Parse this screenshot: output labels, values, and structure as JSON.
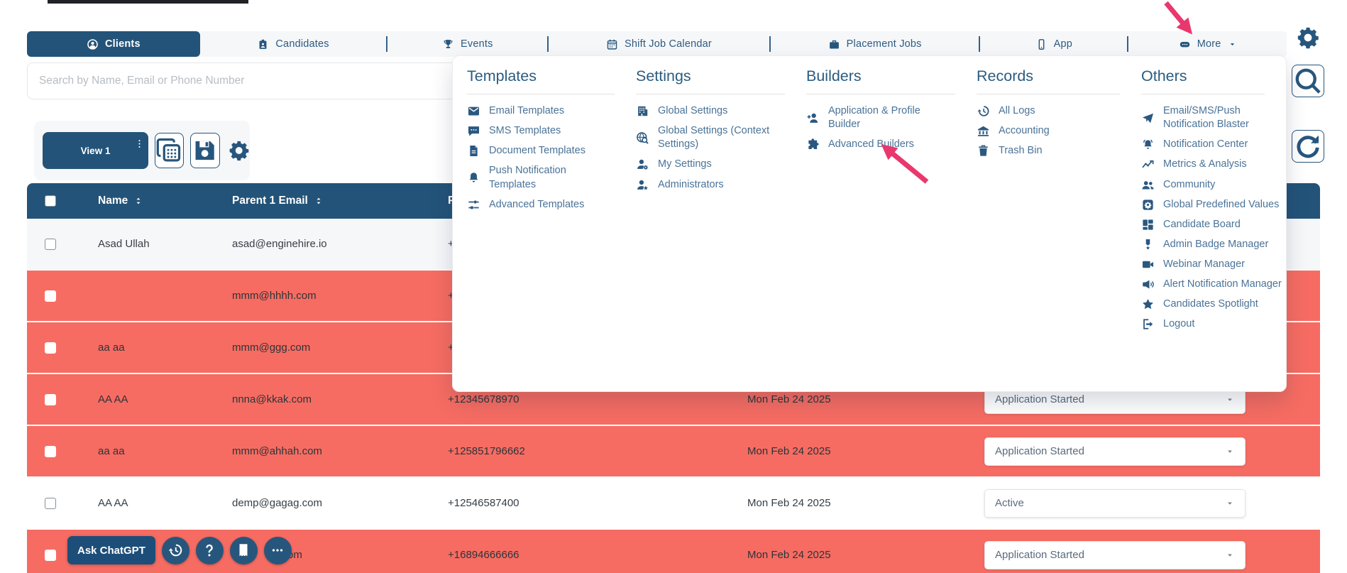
{
  "colors": {
    "brand_blue": "#235378",
    "icon_blue": "#27567d",
    "nav_bg": "#f6f7f9",
    "menu_header": "#2b5c80",
    "menu_link": "#4a7398",
    "row_red": "#f66c62",
    "row_light": "#f6f7f9",
    "arrow_pink": "#e9386e",
    "status_text": "#5a6b7d",
    "top_line": "#212226"
  },
  "nav": {
    "items": [
      {
        "id": "clients",
        "label": "Clients",
        "icon": "person-circle-icon",
        "active": true
      },
      {
        "id": "candidates",
        "label": "Candidates",
        "icon": "id-badge-icon"
      },
      {
        "id": "events",
        "label": "Events",
        "icon": "trophy-icon"
      },
      {
        "id": "shift-job-calendar",
        "label": "Shift Job Calendar",
        "icon": "calendar-icon"
      },
      {
        "id": "placement-jobs",
        "label": "Placement Jobs",
        "icon": "briefcase-icon"
      },
      {
        "id": "app",
        "label": "App",
        "icon": "mobile-icon"
      },
      {
        "id": "more",
        "label": "More",
        "icon": "chat-ellipsis-icon",
        "caret": true
      }
    ]
  },
  "icons": {
    "settings_gear": "gear-icon",
    "search_button": "magnifier-icon",
    "refresh_button": "refresh-icon",
    "view_menu_dots": "dots-vertical-icon",
    "copy_button": "copy-icon",
    "save_button": "save-icon",
    "toolbar_gear": "gear-icon",
    "sort": "sort-icon",
    "status_caret": "caret-down-icon"
  },
  "search": {
    "placeholder": "Search by Name, Email or Phone Number"
  },
  "toolbar": {
    "view_button_label": "View 1"
  },
  "menu": {
    "columns": [
      {
        "title": "Templates",
        "items": [
          {
            "label": "Email Templates",
            "icon": "envelope-icon"
          },
          {
            "label": "SMS Templates",
            "icon": "sms-icon"
          },
          {
            "label": "Document Templates",
            "icon": "document-icon"
          },
          {
            "label": "Push Notification Templates",
            "icon": "bell-icon"
          },
          {
            "label": "Advanced Templates",
            "icon": "tune-icon"
          }
        ]
      },
      {
        "title": "Settings",
        "items": [
          {
            "label": "Global Settings",
            "icon": "building-icon"
          },
          {
            "label": "Global Settings (Context Settings)",
            "icon": "globe-search-icon"
          },
          {
            "label": "My Settings",
            "icon": "user-gear-icon"
          },
          {
            "label": "Administrators",
            "icon": "user-star-icon"
          }
        ]
      },
      {
        "title": "Builders",
        "items": [
          {
            "label": "Application & Profile Builder",
            "icon": "user-plus-icon"
          },
          {
            "label": "Advanced Builders",
            "icon": "puzzle-icon"
          }
        ]
      },
      {
        "title": "Records",
        "items": [
          {
            "label": "All Logs",
            "icon": "history-icon"
          },
          {
            "label": "Accounting",
            "icon": "bank-icon"
          },
          {
            "label": "Trash Bin",
            "icon": "trash-icon"
          }
        ]
      },
      {
        "title": "Others",
        "items": [
          {
            "label": "Email/SMS/Push Notification Blaster",
            "icon": "send-icon"
          },
          {
            "label": "Notification Center",
            "icon": "bell-ring-icon"
          },
          {
            "label": "Metrics & Analysis",
            "icon": "chart-line-icon"
          },
          {
            "label": "Community",
            "icon": "people-icon"
          },
          {
            "label": "Global Predefined Values",
            "icon": "gear-square-icon"
          },
          {
            "label": "Candidate Board",
            "icon": "board-icon"
          },
          {
            "label": "Admin Badge Manager",
            "icon": "badge-icon"
          },
          {
            "label": "Webinar Manager",
            "icon": "video-icon"
          },
          {
            "label": "Alert Notification Manager",
            "icon": "megaphone-icon"
          },
          {
            "label": "Candidates Spotlight",
            "icon": "star-icon"
          },
          {
            "label": "Logout",
            "icon": "logout-icon"
          }
        ]
      }
    ]
  },
  "table": {
    "headers": [
      {
        "key": "name",
        "label": "Name",
        "sortable": true
      },
      {
        "key": "email",
        "label": "Parent 1 Email",
        "sortable": true
      },
      {
        "key": "phone",
        "label": "Phone",
        "sortable": true
      }
    ],
    "rows": [
      {
        "name": "Asad Ullah",
        "email": "asad@enginehire.io",
        "phone": "+",
        "date": "",
        "status": "",
        "highlight": false
      },
      {
        "name": "",
        "email": "mmm@hhhh.com",
        "phone": "+",
        "date": "",
        "status": "",
        "highlight": true
      },
      {
        "name": "aa aa",
        "email": "mmm@ggg.com",
        "phone": "+",
        "date": "",
        "status": "",
        "highlight": true
      },
      {
        "name": "AA AA",
        "email": "nnna@kkak.com",
        "phone": "+12345678970",
        "date": "Mon Feb 24 2025",
        "status": "Application Started",
        "highlight": true
      },
      {
        "name": "aa aa",
        "email": "mmm@ahhah.com",
        "phone": "+125851796662",
        "date": "Mon Feb 24 2025",
        "status": "Application Started",
        "highlight": true
      },
      {
        "name": "AA AA",
        "email": "demp@gagag.com",
        "phone": "+12546587400",
        "date": "Mon Feb 24 2025",
        "status": "Active",
        "highlight": false
      },
      {
        "name": "",
        "email": "h.com",
        "phone": "+16894666666",
        "date": "Mon Feb 24 2025",
        "status": "Application Started",
        "highlight": true,
        "email_offset": true
      }
    ]
  },
  "overlay": {
    "ask_chatgpt_label": "Ask ChatGPT",
    "buttons": [
      {
        "name": "history",
        "icon": "history-icon"
      },
      {
        "name": "help",
        "icon": "question-icon"
      },
      {
        "name": "receipt",
        "icon": "receipt-icon"
      },
      {
        "name": "more",
        "icon": "ellipsis-icon"
      }
    ]
  }
}
